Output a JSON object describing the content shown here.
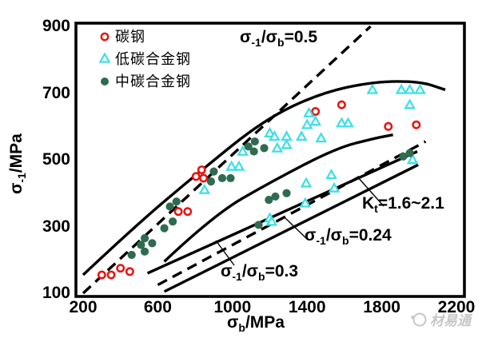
{
  "figure": {
    "legend": {
      "items": [
        {
          "label": "碳钢",
          "marker": "open-circle",
          "color": "#e8130f"
        },
        {
          "label": "低碳合金钢",
          "marker": "open-triangle",
          "color": "#3fdfe8"
        },
        {
          "label": "中碳合金钢",
          "marker": "filled-circle",
          "color": "#2e6b50"
        }
      ]
    },
    "axes": {
      "x": {
        "label_text": "σb/MPa",
        "label_parts": {
          "p1": "σ",
          "s1": "b",
          "p3": "/MPa"
        },
        "ticks": [
          200,
          600,
          1000,
          1400,
          1800,
          2200
        ]
      },
      "y": {
        "label_text": "σ-1/MPa",
        "label_parts": {
          "p1": "σ",
          "s1": "-1",
          "p3": "/MPa"
        },
        "ticks": [
          900,
          700,
          500,
          300,
          100
        ]
      }
    },
    "annotations": {
      "ratio05": {
        "text": "σ-1/σb=0.5",
        "parts": {
          "p1": "σ",
          "s1": "-1",
          "p2": "/σ",
          "s2": "b",
          "p3": "=0.5"
        }
      },
      "kt": {
        "text": "Kt=1.6~2.1",
        "parts": {
          "p1": "K",
          "s1": "t",
          "p2": "",
          "s2": "",
          "p3": "=1.6~2.1"
        }
      },
      "ratio024": {
        "text": "σ-1/σb=0.24",
        "parts": {
          "p1": "σ",
          "s1": "-1",
          "p2": "/σ",
          "s2": "b",
          "p3": "=0.24"
        }
      },
      "ratio03": {
        "text": "σ-1/σb=0.3",
        "parts": {
          "p1": "σ",
          "s1": "-1",
          "p2": "/σ",
          "s2": "b",
          "p3": "=0.3"
        }
      }
    },
    "watermark": {
      "text": "材易通"
    }
  },
  "chart_data": {
    "type": "scatter",
    "title": "",
    "xlabel": "σb/MPa",
    "ylabel": "σ-1/MPa",
    "xlim": [
      200,
      2260
    ],
    "ylim": [
      100,
      910
    ],
    "x_ticks": [
      200,
      600,
      1000,
      1400,
      1800,
      2200
    ],
    "y_ticks": [
      100,
      300,
      500,
      700,
      900
    ],
    "grid": false,
    "legend_position": "upper-left-inside",
    "series": [
      {
        "name": "碳钢",
        "marker": "open-circle",
        "color": "#e8130f",
        "points": [
          [
            300,
            155
          ],
          [
            350,
            155
          ],
          [
            400,
            175
          ],
          [
            450,
            165
          ],
          [
            710,
            345
          ],
          [
            760,
            345
          ],
          [
            805,
            450
          ],
          [
            835,
            470
          ],
          [
            845,
            445
          ],
          [
            1445,
            645
          ],
          [
            1585,
            665
          ],
          [
            1835,
            600
          ],
          [
            1985,
            605
          ]
        ]
      },
      {
        "name": "低碳合金钢",
        "marker": "open-triangle",
        "color": "#3fdfe8",
        "points": [
          [
            850,
            410
          ],
          [
            995,
            480
          ],
          [
            1035,
            480
          ],
          [
            1055,
            525
          ],
          [
            1200,
            580
          ],
          [
            1225,
            570
          ],
          [
            1290,
            570
          ],
          [
            1370,
            570
          ],
          [
            1475,
            565
          ],
          [
            1240,
            535
          ],
          [
            1290,
            545
          ],
          [
            1410,
            640
          ],
          [
            1445,
            615
          ],
          [
            1400,
            605
          ],
          [
            1750,
            710
          ],
          [
            1905,
            710
          ],
          [
            1950,
            710
          ],
          [
            2005,
            710
          ],
          [
            1950,
            665
          ],
          [
            1585,
            610
          ],
          [
            1620,
            610
          ],
          [
            1395,
            430
          ],
          [
            1530,
            455
          ],
          [
            1545,
            415
          ],
          [
            1390,
            370
          ],
          [
            1200,
            325
          ],
          [
            1210,
            315
          ],
          [
            1965,
            500
          ]
        ]
      },
      {
        "name": "中碳合金钢",
        "marker": "filled-circle",
        "color": "#2e6b50",
        "points": [
          [
            460,
            215
          ],
          [
            510,
            245
          ],
          [
            530,
            265
          ],
          [
            530,
            225
          ],
          [
            570,
            250
          ],
          [
            635,
            295
          ],
          [
            665,
            360
          ],
          [
            680,
            315
          ],
          [
            700,
            375
          ],
          [
            900,
            465
          ],
          [
            885,
            435
          ],
          [
            945,
            445
          ],
          [
            990,
            445
          ],
          [
            1120,
            555
          ],
          [
            1085,
            540
          ],
          [
            1115,
            525
          ],
          [
            1170,
            535
          ],
          [
            1195,
            380
          ],
          [
            1230,
            390
          ],
          [
            1290,
            400
          ],
          [
            1140,
            305
          ],
          [
            1915,
            510
          ],
          [
            1950,
            520
          ]
        ]
      }
    ],
    "lines": [
      {
        "name": "ratio-0.5-line",
        "style": "dashed",
        "label": "σ-1/σb=0.5",
        "points": [
          [
            200,
            100
          ],
          [
            1740,
            900
          ]
        ]
      },
      {
        "name": "upper-bound-curve",
        "style": "solid",
        "label": "",
        "points": [
          [
            200,
            155
          ],
          [
            485,
            305
          ],
          [
            825,
            465
          ],
          [
            1170,
            620
          ],
          [
            1470,
            700
          ],
          [
            1760,
            735
          ],
          [
            2005,
            735
          ],
          [
            2140,
            710
          ]
        ]
      },
      {
        "name": "middle-bound-curve",
        "style": "solid",
        "label": "",
        "points": [
          [
            635,
            195
          ],
          [
            900,
            335
          ],
          [
            1210,
            435
          ],
          [
            1555,
            535
          ],
          [
            1765,
            565
          ],
          [
            1860,
            575
          ]
        ]
      },
      {
        "name": "band-upper-solid",
        "style": "solid",
        "label": "σ-1/σb=0.3",
        "points": [
          [
            545,
            160
          ],
          [
            1990,
            525
          ]
        ]
      },
      {
        "name": "band-dashed",
        "style": "dashed",
        "label": "Kt=1.6~2.1",
        "points": [
          [
            600,
            125
          ],
          [
            2035,
            555
          ]
        ]
      },
      {
        "name": "band-lower-solid",
        "style": "solid",
        "label": "σ-1/σb=0.24",
        "points": [
          [
            635,
            105
          ],
          [
            1995,
            485
          ]
        ]
      }
    ]
  }
}
